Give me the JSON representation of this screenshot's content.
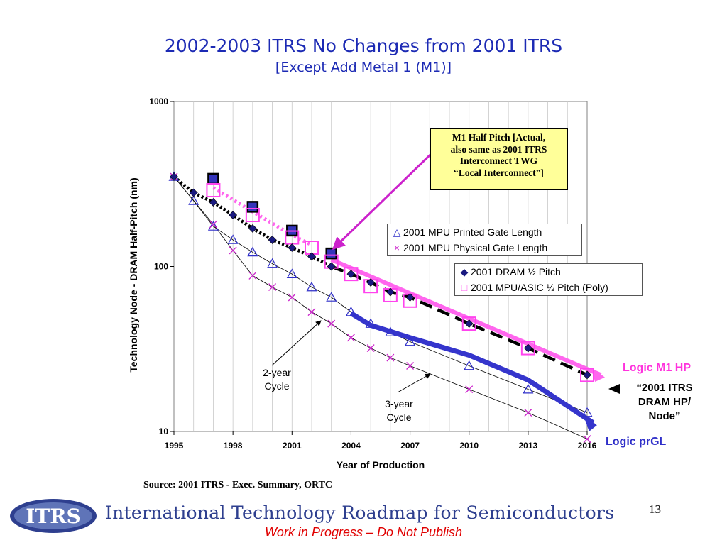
{
  "title": "2002-2003 ITRS No Changes from 2001 ITRS",
  "subtitle": "[Except Add Metal 1 (M1)]",
  "callout_lines": [
    "M1 Half Pitch [Actual,",
    "also same as 2001 ITRS",
    "Interconnect TWG",
    "“Local Interconnect”]"
  ],
  "legend_mpu": [
    "2001 MPU  Printed Gate Length",
    "2001 MPU Physical Gate Length"
  ],
  "legend_dram": [
    "2001 DRAM ½ Pitch",
    "2001 MPU/ASIC ½ Pitch (Poly)"
  ],
  "labels": {
    "logic_m1_hp": "Logic M1 HP",
    "dram_node": [
      "“2001 ITRS",
      "DRAM HP/",
      "Node”"
    ],
    "logic_prgl": "Logic prGL",
    "two_year": [
      "2-year",
      "Cycle"
    ],
    "three_year": [
      "3-year",
      "Cycle"
    ]
  },
  "source": "Source:  2001 ITRS - Exec. Summary, ORTC",
  "footer_title": "International Technology Roadmap for Semiconductors",
  "footer_note": "Work in Progress – Do Not Publish",
  "page_number": "13",
  "logo_text": "ITRS",
  "colors": {
    "title": "#1c2ab4",
    "mpu_blue": "#2f2fc9",
    "pink": "#ff55ee",
    "magenta": "#cc22cc",
    "black": "#000000"
  },
  "chart_data": {
    "type": "scatter",
    "xlabel": "Year of Production",
    "ylabel": "Technology Node - DRAM Half-Pitch (nm)",
    "yscale": "log",
    "xlim": [
      1995,
      2016
    ],
    "ylim": [
      10,
      1000
    ],
    "x_ticks": [
      1995,
      1998,
      2001,
      2004,
      2007,
      2010,
      2013,
      2016
    ],
    "y_ticks": [
      10,
      100,
      1000
    ],
    "grid": "vertical-yearly",
    "series": [
      {
        "name": "2001 MPU  Printed Gate Length",
        "marker": "triangle",
        "x": [
          1995,
          1996,
          1997,
          1998,
          1999,
          2000,
          2001,
          2002,
          2003,
          2004,
          2005,
          2006,
          2007,
          2010,
          2013,
          2016
        ],
        "y": [
          350,
          250,
          175,
          145,
          122,
          104,
          90,
          75,
          65,
          53,
          45,
          40,
          35,
          25,
          18,
          13
        ]
      },
      {
        "name": "2001 MPU Physical Gate Length",
        "marker": "x",
        "x": [
          1995,
          1997,
          1998,
          1999,
          2000,
          2001,
          2002,
          2003,
          2004,
          2005,
          2006,
          2007,
          2010,
          2013,
          2016
        ],
        "y": [
          350,
          180,
          125,
          88,
          75,
          65,
          53,
          45,
          37,
          32,
          28,
          25,
          18,
          13,
          9
        ]
      },
      {
        "name": "2001 DRAM ½ Pitch",
        "marker": "diamond",
        "x": [
          1995,
          1996,
          1997,
          1998,
          1999,
          2000,
          2001,
          2002,
          2003,
          2004,
          2005,
          2006,
          2007,
          2010,
          2013,
          2016
        ],
        "y": [
          350,
          280,
          245,
          205,
          170,
          145,
          130,
          115,
          100,
          90,
          80,
          70,
          65,
          45,
          32,
          22
        ]
      },
      {
        "name": "2001 MPU/ASIC ½ Pitch (Poly)",
        "marker": "square",
        "x": [
          1997,
          1999,
          2001,
          2002,
          2003,
          2004,
          2005,
          2006,
          2007,
          2010,
          2013,
          2016
        ],
        "y": [
          290,
          205,
          150,
          130,
          107,
          90,
          76,
          67,
          62,
          45,
          32,
          22
        ]
      },
      {
        "name": "M1 Half Pitch [Actual, also same as 2001 ITRS Interconnect TWG “Local Interconnect”]",
        "marker": "filled-square",
        "x": [
          1997,
          1999,
          2001,
          2003
        ],
        "y": [
          340,
          230,
          165,
          120
        ]
      }
    ]
  }
}
